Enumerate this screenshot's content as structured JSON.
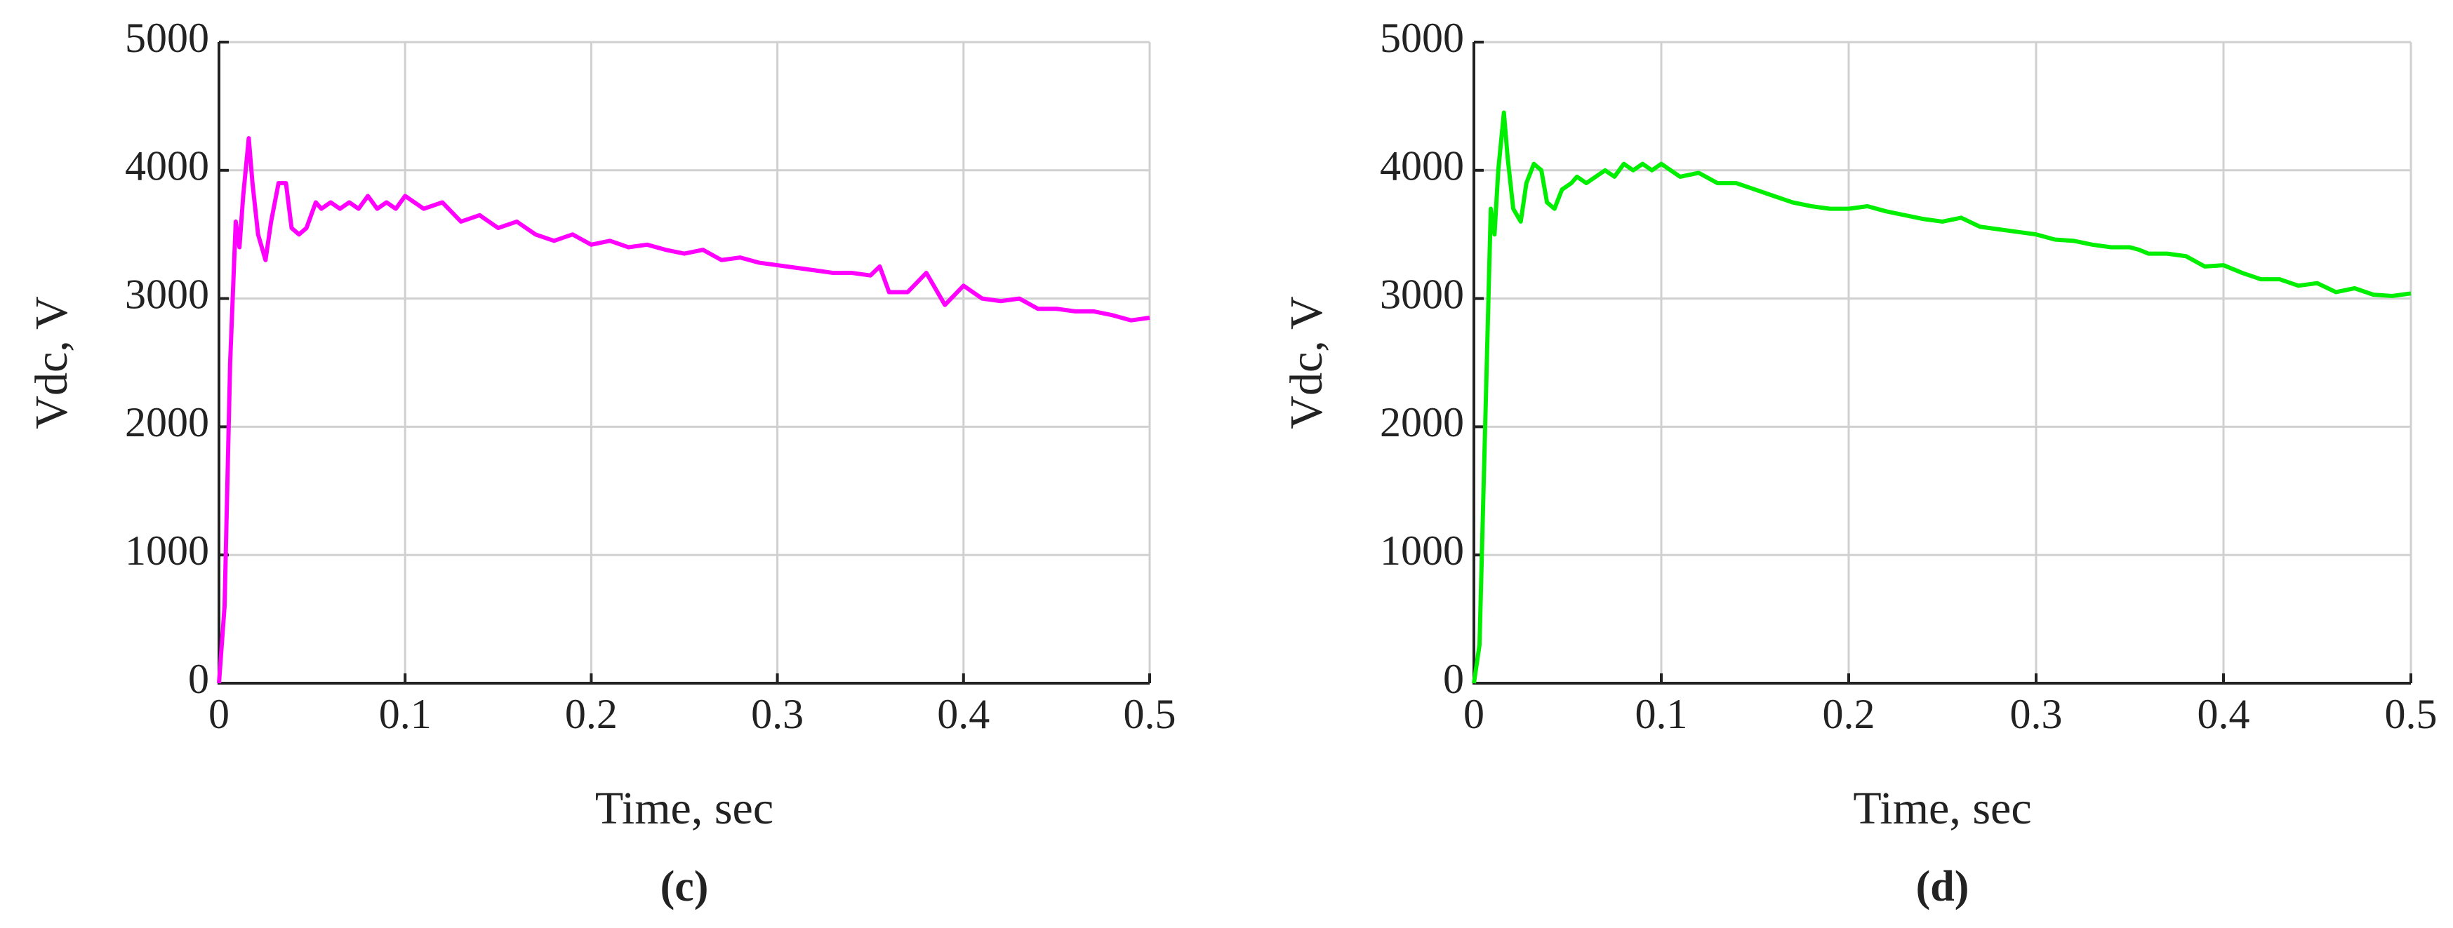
{
  "chart_data": [
    {
      "type": "line",
      "xlabel": "Time, sec",
      "ylabel": "Vdc, V",
      "caption": "(c)",
      "color": "#ff00ff",
      "x": [
        0,
        0.003,
        0.006,
        0.009,
        0.011,
        0.013,
        0.016,
        0.018,
        0.021,
        0.025,
        0.028,
        0.032,
        0.036,
        0.039,
        0.043,
        0.047,
        0.052,
        0.055,
        0.06,
        0.065,
        0.07,
        0.075,
        0.08,
        0.085,
        0.09,
        0.095,
        0.1,
        0.11,
        0.12,
        0.13,
        0.14,
        0.15,
        0.16,
        0.17,
        0.18,
        0.19,
        0.2,
        0.21,
        0.22,
        0.23,
        0.24,
        0.25,
        0.26,
        0.27,
        0.28,
        0.29,
        0.3,
        0.31,
        0.32,
        0.33,
        0.34,
        0.35,
        0.355,
        0.36,
        0.37,
        0.38,
        0.39,
        0.4,
        0.41,
        0.42,
        0.43,
        0.44,
        0.45,
        0.46,
        0.47,
        0.48,
        0.49,
        0.5
      ],
      "values": [
        0,
        600,
        2500,
        3600,
        3400,
        3800,
        4250,
        3900,
        3500,
        3300,
        3600,
        3900,
        3900,
        3550,
        3500,
        3550,
        3750,
        3700,
        3750,
        3700,
        3750,
        3700,
        3800,
        3700,
        3750,
        3700,
        3800,
        3700,
        3750,
        3600,
        3650,
        3550,
        3600,
        3500,
        3450,
        3500,
        3420,
        3450,
        3400,
        3420,
        3380,
        3350,
        3380,
        3300,
        3320,
        3280,
        3260,
        3240,
        3220,
        3200,
        3200,
        3180,
        3250,
        3050,
        3050,
        3200,
        2950,
        3100,
        3000,
        2980,
        3000,
        2920,
        2920,
        2900,
        2900,
        2870,
        2830,
        2850
      ],
      "xlim": [
        0,
        0.5
      ],
      "xticks": [
        0,
        0.1,
        0.2,
        0.3,
        0.4,
        0.5
      ],
      "ylim": [
        0,
        5000
      ],
      "yticks": [
        0,
        1000,
        2000,
        3000,
        4000,
        5000
      ],
      "grid": true
    },
    {
      "type": "line",
      "xlabel": "Time, sec",
      "ylabel": "Vdc, V",
      "caption": "(d)",
      "color": "#00ee00",
      "x": [
        0,
        0.003,
        0.006,
        0.009,
        0.011,
        0.013,
        0.016,
        0.018,
        0.021,
        0.025,
        0.028,
        0.032,
        0.036,
        0.039,
        0.043,
        0.047,
        0.052,
        0.055,
        0.06,
        0.065,
        0.07,
        0.075,
        0.08,
        0.085,
        0.09,
        0.095,
        0.1,
        0.11,
        0.12,
        0.13,
        0.14,
        0.15,
        0.16,
        0.17,
        0.18,
        0.19,
        0.2,
        0.21,
        0.22,
        0.23,
        0.24,
        0.25,
        0.26,
        0.27,
        0.28,
        0.29,
        0.3,
        0.31,
        0.32,
        0.33,
        0.34,
        0.35,
        0.355,
        0.36,
        0.37,
        0.38,
        0.39,
        0.4,
        0.41,
        0.42,
        0.43,
        0.44,
        0.45,
        0.46,
        0.47,
        0.48,
        0.49,
        0.5
      ],
      "values": [
        0,
        300,
        2000,
        3700,
        3500,
        4000,
        4450,
        4100,
        3700,
        3600,
        3900,
        4050,
        4000,
        3750,
        3700,
        3850,
        3900,
        3950,
        3900,
        3950,
        4000,
        3950,
        4050,
        4000,
        4050,
        4000,
        4050,
        3950,
        3980,
        3900,
        3900,
        3850,
        3800,
        3750,
        3720,
        3700,
        3700,
        3720,
        3680,
        3650,
        3620,
        3600,
        3630,
        3560,
        3540,
        3520,
        3500,
        3460,
        3450,
        3420,
        3400,
        3400,
        3380,
        3350,
        3350,
        3330,
        3250,
        3260,
        3200,
        3150,
        3150,
        3100,
        3120,
        3050,
        3080,
        3030,
        3020,
        3040
      ],
      "xlim": [
        0,
        0.5
      ],
      "xticks": [
        0,
        0.1,
        0.2,
        0.3,
        0.4,
        0.5
      ],
      "ylim": [
        0,
        5000
      ],
      "yticks": [
        0,
        1000,
        2000,
        3000,
        4000,
        5000
      ],
      "grid": true
    }
  ]
}
